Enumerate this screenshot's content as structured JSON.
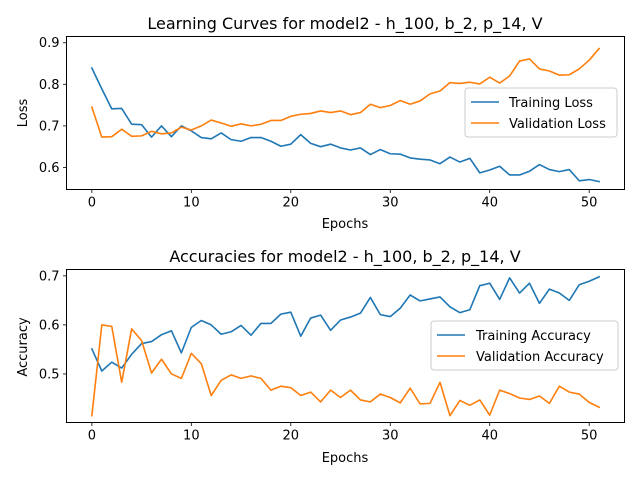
{
  "chart_data": [
    {
      "type": "line",
      "title": "Learning Curves for model2 - h_100, b_2, p_14, V",
      "xlabel": "Epochs",
      "ylabel": "Loss",
      "xlim": [
        -2.55,
        53.55
      ],
      "ylim": [
        0.547,
        0.915
      ],
      "xticks": [
        0,
        10,
        20,
        30,
        40,
        50
      ],
      "yticks": [
        0.6,
        0.7,
        0.8,
        0.9
      ],
      "grid": false,
      "legend_position": "center-right",
      "x": [
        0,
        1,
        2,
        3,
        4,
        5,
        6,
        7,
        8,
        9,
        10,
        11,
        12,
        13,
        14,
        15,
        16,
        17,
        18,
        19,
        20,
        21,
        22,
        23,
        24,
        25,
        26,
        27,
        28,
        29,
        30,
        31,
        32,
        33,
        34,
        35,
        36,
        37,
        38,
        39,
        40,
        41,
        42,
        43,
        44,
        45,
        46,
        47,
        48,
        49,
        50,
        51
      ],
      "series": [
        {
          "name": "Training Loss",
          "color": "#1f77b4",
          "values": [
            0.839,
            0.789,
            0.741,
            0.742,
            0.704,
            0.703,
            0.673,
            0.7,
            0.674,
            0.7,
            0.688,
            0.672,
            0.669,
            0.683,
            0.667,
            0.663,
            0.672,
            0.672,
            0.663,
            0.651,
            0.656,
            0.679,
            0.658,
            0.65,
            0.656,
            0.647,
            0.642,
            0.647,
            0.631,
            0.643,
            0.633,
            0.632,
            0.623,
            0.62,
            0.618,
            0.609,
            0.625,
            0.613,
            0.622,
            0.587,
            0.594,
            0.603,
            0.582,
            0.582,
            0.591,
            0.607,
            0.595,
            0.59,
            0.595,
            0.568,
            0.571,
            0.566
          ]
        },
        {
          "name": "Validation Loss",
          "color": "#ff7f0e",
          "values": [
            0.745,
            0.673,
            0.674,
            0.692,
            0.675,
            0.676,
            0.687,
            0.681,
            0.683,
            0.697,
            0.69,
            0.7,
            0.714,
            0.707,
            0.699,
            0.705,
            0.7,
            0.704,
            0.713,
            0.713,
            0.723,
            0.728,
            0.73,
            0.736,
            0.732,
            0.736,
            0.727,
            0.732,
            0.752,
            0.744,
            0.749,
            0.761,
            0.752,
            0.76,
            0.777,
            0.784,
            0.804,
            0.802,
            0.805,
            0.801,
            0.817,
            0.803,
            0.82,
            0.856,
            0.861,
            0.837,
            0.832,
            0.822,
            0.823,
            0.837,
            0.858,
            0.886
          ]
        }
      ]
    },
    {
      "type": "line",
      "title": "Accuracies for model2 - h_100, b_2, p_14, V",
      "xlabel": "Epochs",
      "ylabel": "Accuracy",
      "xlim": [
        -2.55,
        53.55
      ],
      "ylim": [
        0.401,
        0.713
      ],
      "xticks": [
        0,
        10,
        20,
        30,
        40,
        50
      ],
      "yticks": [
        0.5,
        0.6,
        0.7
      ],
      "grid": false,
      "legend_position": "center-right",
      "x": [
        0,
        1,
        2,
        3,
        4,
        5,
        6,
        7,
        8,
        9,
        10,
        11,
        12,
        13,
        14,
        15,
        16,
        17,
        18,
        19,
        20,
        21,
        22,
        23,
        24,
        25,
        26,
        27,
        28,
        29,
        30,
        31,
        32,
        33,
        34,
        35,
        36,
        37,
        38,
        39,
        40,
        41,
        42,
        43,
        44,
        45,
        46,
        47,
        48,
        49,
        50,
        51
      ],
      "series": [
        {
          "name": "Training Accuracy",
          "color": "#1f77b4",
          "values": [
            0.551,
            0.506,
            0.524,
            0.512,
            0.54,
            0.562,
            0.566,
            0.58,
            0.588,
            0.543,
            0.595,
            0.609,
            0.6,
            0.581,
            0.586,
            0.599,
            0.579,
            0.603,
            0.603,
            0.622,
            0.626,
            0.577,
            0.614,
            0.62,
            0.589,
            0.61,
            0.616,
            0.624,
            0.656,
            0.621,
            0.617,
            0.634,
            0.661,
            0.649,
            0.653,
            0.657,
            0.637,
            0.625,
            0.631,
            0.68,
            0.685,
            0.652,
            0.696,
            0.665,
            0.685,
            0.644,
            0.673,
            0.665,
            0.65,
            0.682,
            0.689,
            0.698
          ]
        },
        {
          "name": "Validation Accuracy",
          "color": "#ff7f0e",
          "values": [
            0.415,
            0.6,
            0.597,
            0.483,
            0.592,
            0.568,
            0.502,
            0.53,
            0.5,
            0.491,
            0.542,
            0.521,
            0.456,
            0.487,
            0.498,
            0.491,
            0.496,
            0.491,
            0.467,
            0.475,
            0.472,
            0.456,
            0.463,
            0.443,
            0.467,
            0.452,
            0.467,
            0.447,
            0.443,
            0.459,
            0.452,
            0.441,
            0.471,
            0.439,
            0.44,
            0.483,
            0.415,
            0.446,
            0.436,
            0.447,
            0.416,
            0.467,
            0.46,
            0.451,
            0.448,
            0.455,
            0.44,
            0.475,
            0.463,
            0.459,
            0.442,
            0.432
          ]
        }
      ]
    }
  ]
}
